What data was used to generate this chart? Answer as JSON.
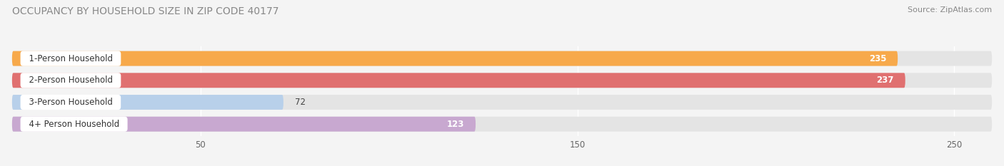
{
  "title": "OCCUPANCY BY HOUSEHOLD SIZE IN ZIP CODE 40177",
  "source": "Source: ZipAtlas.com",
  "categories": [
    "1-Person Household",
    "2-Person Household",
    "3-Person Household",
    "4+ Person Household"
  ],
  "values": [
    235,
    237,
    72,
    123
  ],
  "bar_colors": [
    "#F7A94B",
    "#E07070",
    "#B8D0EA",
    "#C8A8D0"
  ],
  "label_colors": [
    "white",
    "white",
    "#555555",
    "#555555"
  ],
  "xlim": [
    0,
    260
  ],
  "xticks": [
    50,
    150,
    250
  ],
  "background_color": "#f4f4f4",
  "bar_bg_color": "#e4e4e4",
  "title_fontsize": 10,
  "source_fontsize": 8,
  "label_fontsize": 8.5,
  "value_fontsize": 8.5
}
